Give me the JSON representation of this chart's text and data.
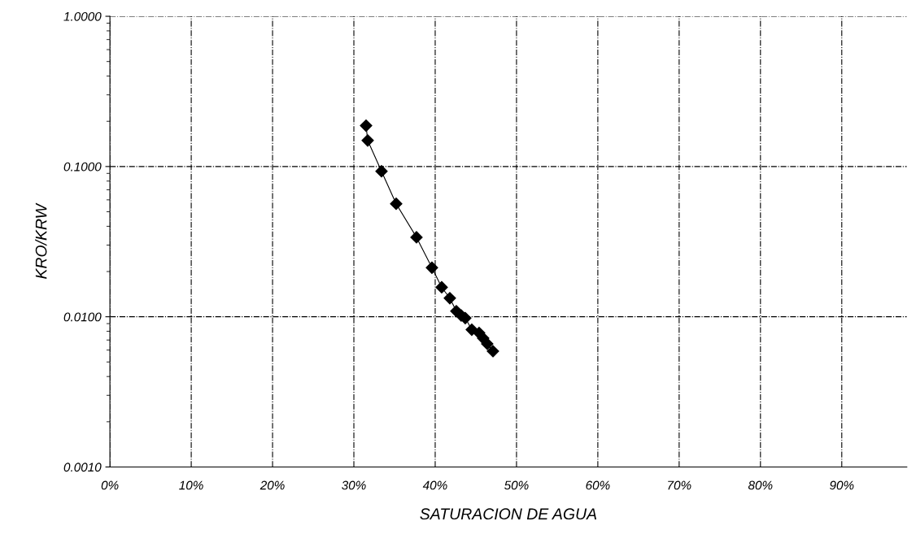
{
  "chart_data": {
    "type": "line",
    "xlabel": "SATURACION DE AGUA",
    "ylabel": "KRO/KRW",
    "x": [
      31.5,
      31.7,
      33.4,
      35.2,
      37.7,
      39.6,
      40.8,
      41.8,
      42.6,
      43.2,
      43.7,
      44.5,
      45.4,
      45.9,
      46.4,
      47.1
    ],
    "series": [
      {
        "color": "#000000",
        "values": [
          0.187,
          0.149,
          0.093,
          0.0565,
          0.0338,
          0.0212,
          0.0157,
          0.0133,
          0.0109,
          0.0102,
          0.0098,
          0.0082,
          0.0078,
          0.0072,
          0.0066,
          0.0059
        ]
      }
    ],
    "log": "y",
    "xlim": [
      0,
      98
    ],
    "ylim": [
      0.001,
      1
    ],
    "xticks": [
      {
        "value": 0,
        "label": "0%"
      },
      {
        "value": 10,
        "label": "10%"
      },
      {
        "value": 20,
        "label": "20%"
      },
      {
        "value": 30,
        "label": "30%"
      },
      {
        "value": 40,
        "label": "40%"
      },
      {
        "value": 50,
        "label": "50%"
      },
      {
        "value": 60,
        "label": "60%"
      },
      {
        "value": 70,
        "label": "70%"
      },
      {
        "value": 80,
        "label": "80%"
      },
      {
        "value": 90,
        "label": "90%"
      }
    ],
    "yticks": [
      {
        "value": 0.001,
        "label": "0.0010"
      },
      {
        "value": 0.01,
        "label": "0.0100"
      },
      {
        "value": 0.1,
        "label": "0.1000"
      },
      {
        "value": 1,
        "label": "1.0000"
      }
    ],
    "grid": true,
    "marker": "diamond",
    "line_style": "solid"
  }
}
